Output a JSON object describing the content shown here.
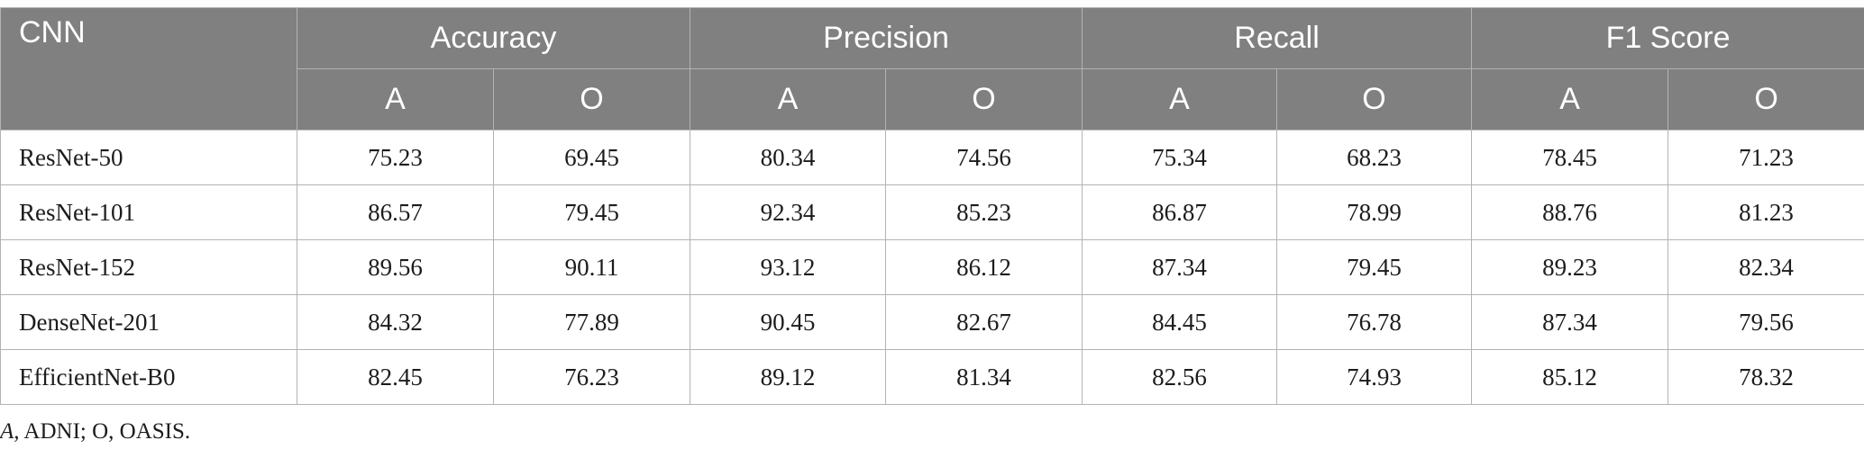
{
  "table": {
    "first_header": "CNN",
    "groups": [
      "Accuracy",
      "Precision",
      "Recall",
      "F1 Score"
    ],
    "subheaders": [
      "A",
      "O",
      "A",
      "O",
      "A",
      "O",
      "A",
      "O"
    ],
    "rows": [
      {
        "name": "ResNet-50",
        "values": [
          "75.23",
          "69.45",
          "80.34",
          "74.56",
          "75.34",
          "68.23",
          "78.45",
          "71.23"
        ]
      },
      {
        "name": "ResNet-101",
        "values": [
          "86.57",
          "79.45",
          "92.34",
          "85.23",
          "86.87",
          "78.99",
          "88.76",
          "81.23"
        ]
      },
      {
        "name": "ResNet-152",
        "values": [
          "89.56",
          "90.11",
          "93.12",
          "86.12",
          "87.34",
          "79.45",
          "89.23",
          "82.34"
        ]
      },
      {
        "name": "DenseNet-201",
        "values": [
          "84.32",
          "77.89",
          "90.45",
          "82.67",
          "84.45",
          "76.78",
          "87.34",
          "79.56"
        ]
      },
      {
        "name": "EfficientNet-B0",
        "values": [
          "82.45",
          "76.23",
          "89.12",
          "81.34",
          "82.56",
          "74.93",
          "85.12",
          "78.32"
        ]
      }
    ]
  },
  "footnote": {
    "abbr_a": "A,",
    "abbr_a_def": " ADNI; O, OASIS."
  },
  "colors": {
    "header_bg": "#7f807f",
    "header_text": "#ffffff",
    "border": "#b3b3b3",
    "body_text": "#1c1c1c"
  }
}
